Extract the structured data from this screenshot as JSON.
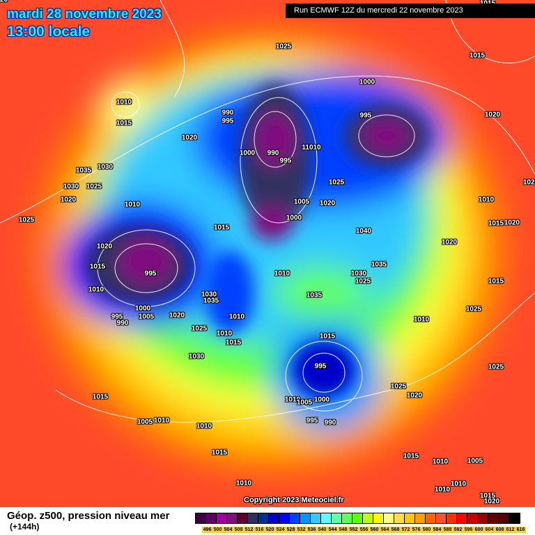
{
  "header": {
    "date": "mardi 28 novembre 2023",
    "time": "13:00 locale",
    "run": "Run ECMWF 12Z du mercredi 22 novembre 2023"
  },
  "copyright": "Copyright 2023 Meteociel.fr",
  "footer": {
    "caption": "Géop. z500, pression niveau mer",
    "lead": "(+144h)"
  },
  "legend": {
    "labels": [
      "496",
      "500",
      "504",
      "508",
      "512",
      "516",
      "520",
      "524",
      "528",
      "532",
      "536",
      "540",
      "544",
      "548",
      "552",
      "556",
      "560",
      "564",
      "568",
      "572",
      "576",
      "580",
      "584",
      "588",
      "592",
      "596",
      "600",
      "604",
      "608",
      "612",
      "616"
    ],
    "colors": [
      "#3a0040",
      "#600060",
      "#a000a0",
      "#801080",
      "#600030",
      "#303060",
      "#003090",
      "#0000c8",
      "#0000ff",
      "#0040ff",
      "#0098ff",
      "#30c8ff",
      "#60ffff",
      "#60ffa0",
      "#60ff60",
      "#60ff00",
      "#c0ff10",
      "#ffff00",
      "#ffff80",
      "#ffe040",
      "#ffc800",
      "#ffa000",
      "#ff6400",
      "#ff5030",
      "#ff3000",
      "#ff0000",
      "#c80000",
      "#980000",
      "#640000",
      "#500000",
      "#000000"
    ]
  },
  "pressure_labels": [
    "1025",
    "1015",
    "1000",
    "1020",
    "1010",
    "1015",
    "1020",
    "1020",
    "990",
    "995",
    "1000",
    "990",
    "995",
    "11010",
    "995",
    "1035",
    "1030",
    "1030",
    "1025",
    "1020",
    "1025",
    "1010",
    "1005",
    "1000",
    "1020",
    "1025",
    "1010",
    "1015",
    "1020",
    "1015",
    "995",
    "1010",
    "1040",
    "1020",
    "1030",
    "1025",
    "1035",
    "1015",
    "1000",
    "1005",
    "995",
    "990",
    "1020",
    "1030",
    "1035",
    "1010",
    "1010",
    "1015",
    "1025",
    "1010",
    "1015",
    "1035",
    "1030",
    "1010",
    "1025",
    "1015",
    "995",
    "1010",
    "1005",
    "1000",
    "995",
    "990",
    "1025",
    "1020",
    "1020",
    "1005",
    "1010",
    "1010",
    "1015",
    "1015",
    "1010",
    "1015",
    "1010",
    "1005",
    "1010",
    "1010",
    "1015",
    "1010",
    "1025",
    "1015",
    "1020",
    "1020"
  ]
}
